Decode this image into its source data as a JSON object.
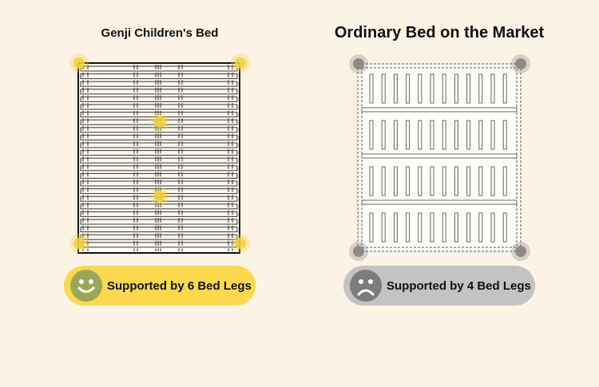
{
  "left": {
    "title": "Genji Children's Bed",
    "badge_label": "Supported by 6 Bed Legs",
    "badge_icon": "smiley-face-icon",
    "badge_color": "#fbd84e",
    "face_color": "#98a855",
    "leg_count": 6,
    "leg_color": "#f7cf3a"
  },
  "right": {
    "title": "Ordinary Bed on the Market",
    "badge_label": "Supported by 4 Bed Legs",
    "badge_icon": "sad-face-icon",
    "badge_color": "#c3c3c3",
    "face_color": "#7c7c7c",
    "leg_count": 4,
    "leg_color": "#808080"
  }
}
